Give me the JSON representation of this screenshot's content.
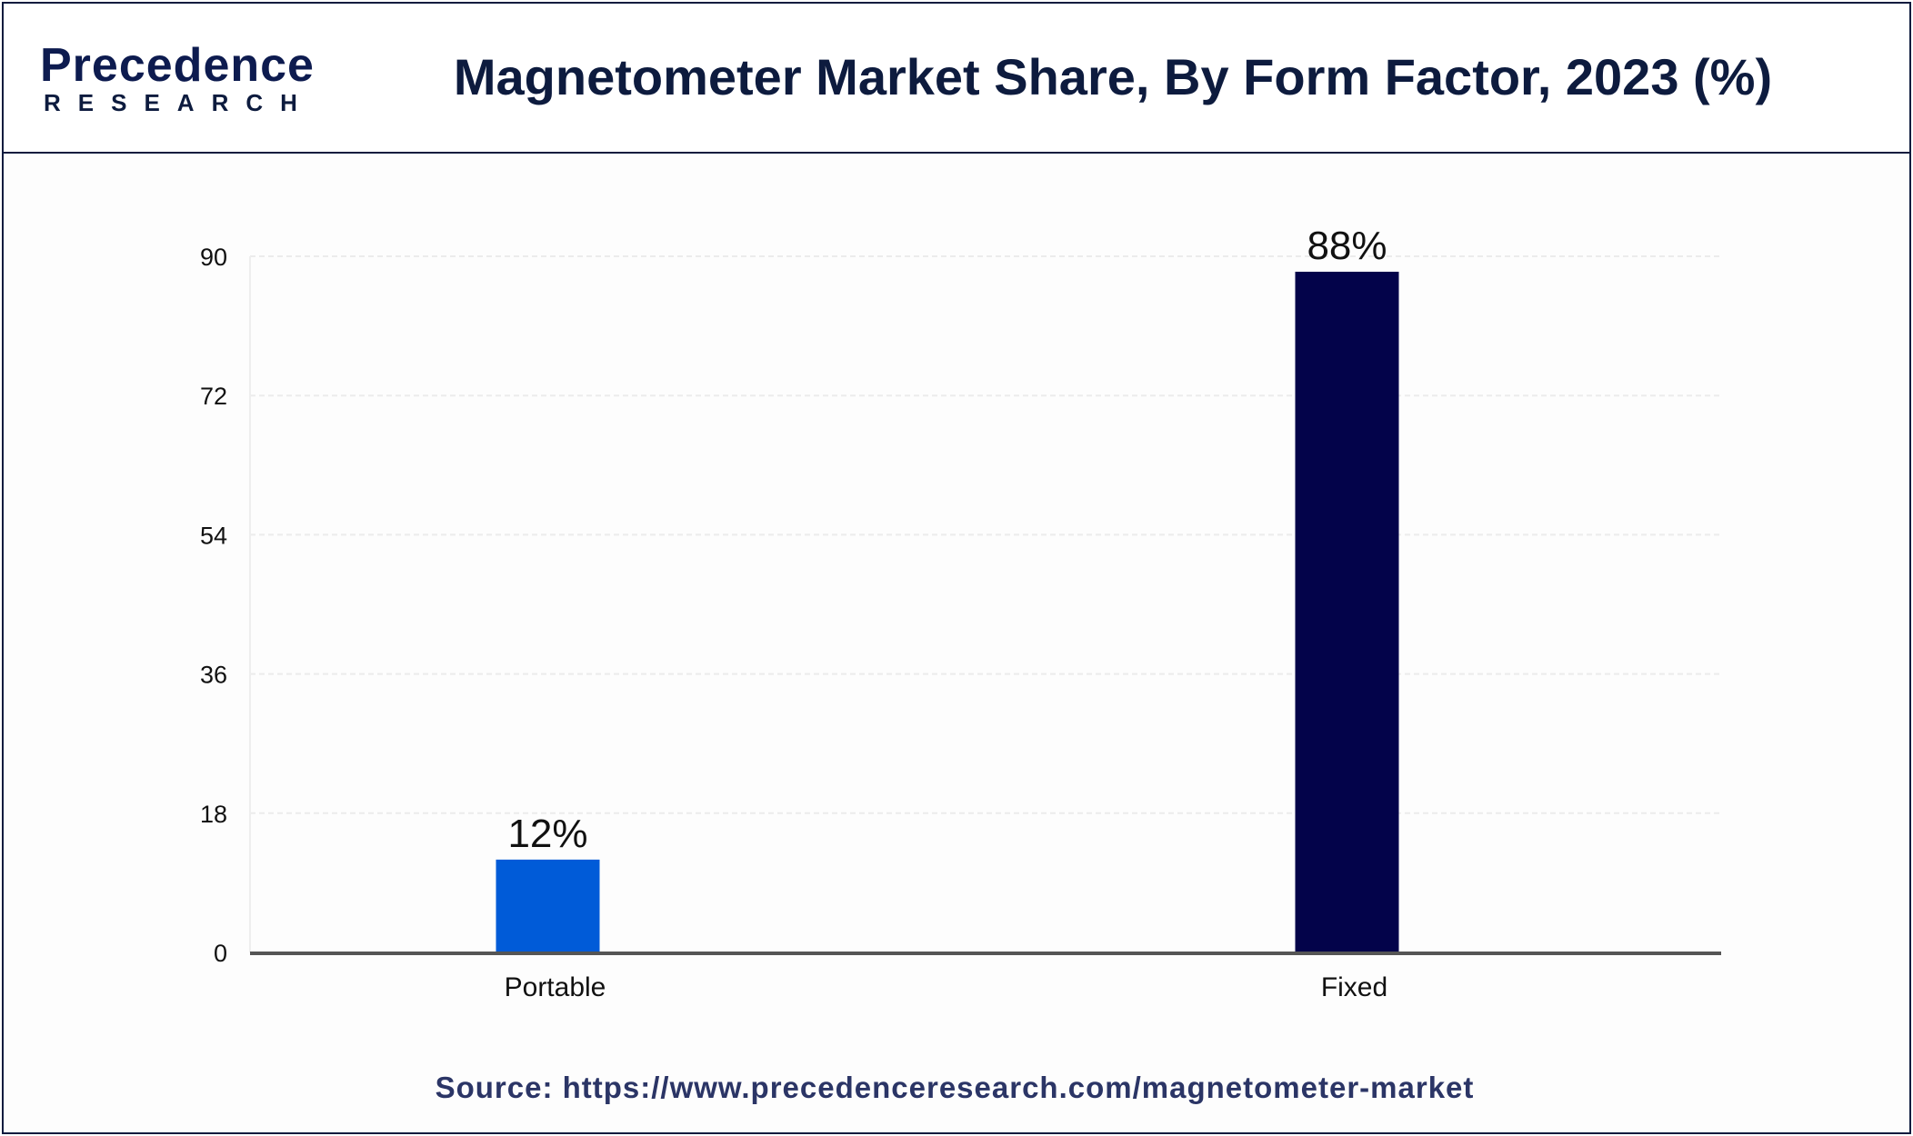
{
  "header": {
    "logo_main": "Precedence",
    "logo_sub": "RESEARCH",
    "title": "Magnetometer Market Share, By Form Factor, 2023 (%)"
  },
  "chart_data": {
    "type": "bar",
    "title": "Magnetometer Market Share, By Form Factor, 2023 (%)",
    "categories": [
      "Portable",
      "Fixed"
    ],
    "values": [
      12,
      88
    ],
    "data_labels": [
      "12%",
      "88%"
    ],
    "bar_colors": [
      "#005bd8",
      "#03034a"
    ],
    "ylim": [
      0,
      90
    ],
    "yticks": [
      0,
      18,
      36,
      54,
      72,
      90
    ],
    "xlabel": "",
    "ylabel": "",
    "grid": true
  },
  "footer": {
    "source": "Source: https://www.precedenceresearch.com/magnetometer-market"
  }
}
